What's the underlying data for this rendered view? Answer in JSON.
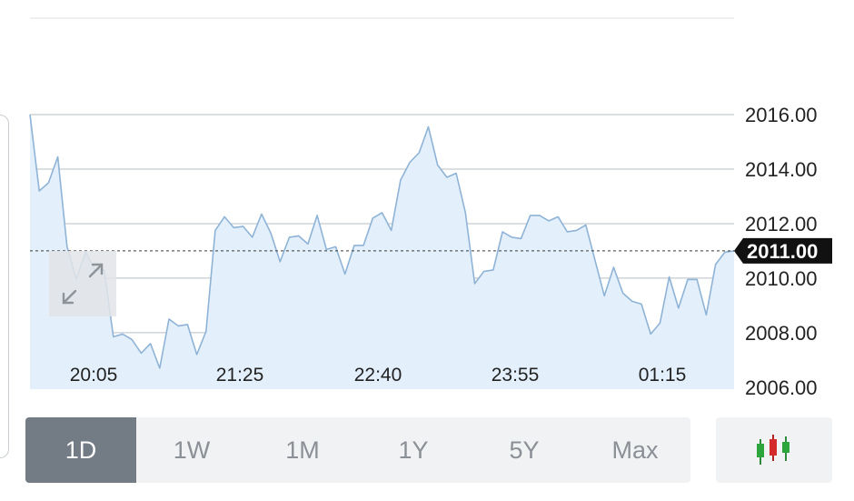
{
  "chart_data": {
    "type": "area",
    "y_ticks": [
      "2016.00",
      "2014.00",
      "2012.00",
      "2010.00",
      "2008.00",
      "2006.00"
    ],
    "y_tick_values": [
      2016,
      2014,
      2012,
      2010,
      2008,
      2006
    ],
    "ylim": [
      2005.93,
      2020.2
    ],
    "x_ticks": [
      "20:05",
      "21:25",
      "22:40",
      "23:55",
      "01:15"
    ],
    "current_value": 2011.0,
    "current_label": "2011.00",
    "grid": true,
    "values": [
      2016.0,
      2013.2,
      2013.5,
      2014.45,
      2011.15,
      2009.95,
      2010.95,
      2010.3,
      2010.3,
      2007.85,
      2007.95,
      2007.75,
      2007.25,
      2007.6,
      2006.7,
      2008.5,
      2008.25,
      2008.3,
      2007.2,
      2008.05,
      2011.75,
      2012.25,
      2011.85,
      2011.9,
      2011.5,
      2012.35,
      2011.65,
      2010.6,
      2011.5,
      2011.55,
      2011.25,
      2012.3,
      2011.05,
      2011.15,
      2010.15,
      2011.2,
      2011.2,
      2012.2,
      2012.4,
      2011.75,
      2013.6,
      2014.25,
      2014.6,
      2015.55,
      2014.15,
      2013.7,
      2013.85,
      2012.4,
      2009.8,
      2010.25,
      2010.3,
      2011.7,
      2011.5,
      2011.45,
      2012.3,
      2012.3,
      2012.1,
      2012.25,
      2011.7,
      2011.75,
      2011.95,
      2010.65,
      2009.35,
      2010.4,
      2009.45,
      2009.15,
      2009.05,
      2007.95,
      2008.35,
      2010.05,
      2008.9,
      2009.95,
      2009.95,
      2008.65,
      2010.5,
      2010.95,
      2011.0
    ],
    "colors": {
      "line": "#8fb3d6",
      "fill": "#e3f0fc",
      "grid": "#b9bfc6",
      "label_bg": "#111111",
      "label_text": "#ffffff"
    }
  },
  "expand_icon": "expand-arrows-icon",
  "candle_icon": "candlestick-icon",
  "range_tabs": [
    {
      "label": "1D",
      "active": true
    },
    {
      "label": "1W",
      "active": false
    },
    {
      "label": "1M",
      "active": false
    },
    {
      "label": "1Y",
      "active": false
    },
    {
      "label": "5Y",
      "active": false
    },
    {
      "label": "Max",
      "active": false
    }
  ]
}
